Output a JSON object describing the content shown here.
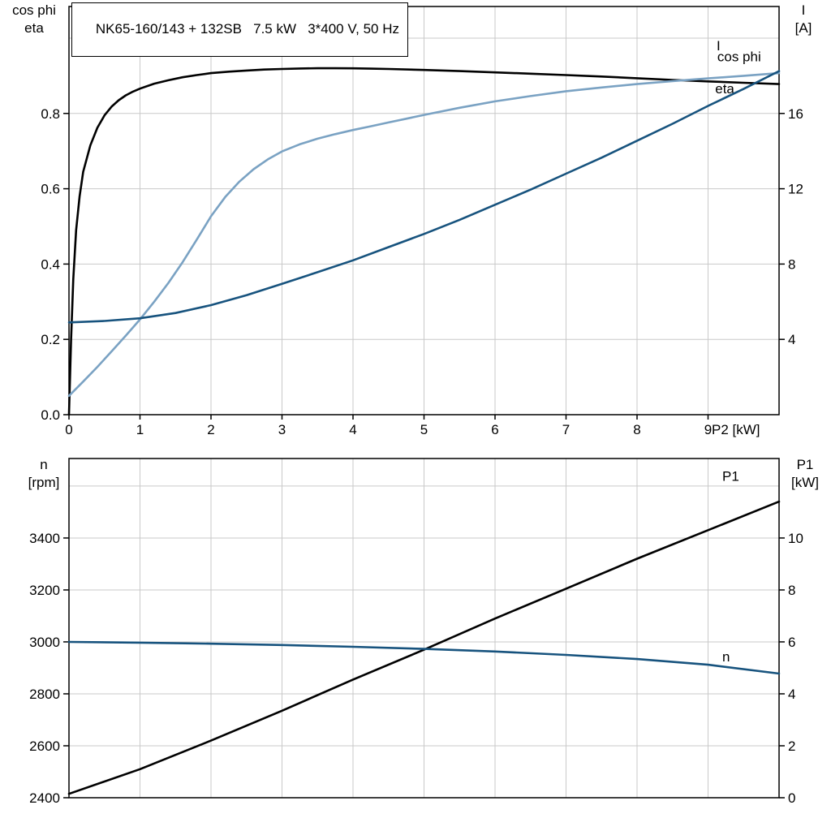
{
  "title_box": {
    "text": "NK65-160/143 + 132SB   7.5 kW   3*400 V, 50 Hz"
  },
  "colors": {
    "black": "#000000",
    "dark_blue": "#17537e",
    "light_blue": "#7aa2c3",
    "grid": "#c9c9c9"
  },
  "chart_data": [
    {
      "type": "line",
      "title": "NK65-160/143 + 132SB   7.5 kW   3*400 V, 50 Hz",
      "x_label": "P2 [kW]",
      "x_range": [
        0,
        10
      ],
      "x_ticks": {
        "values": [
          0,
          1,
          2,
          3,
          4,
          5,
          6,
          7,
          8,
          9
        ],
        "labels": [
          "0",
          "1",
          "2",
          "3",
          "4",
          "5",
          "6",
          "7",
          "8",
          "9"
        ]
      },
      "grid_x": [
        1,
        2,
        3,
        4,
        5,
        6,
        7,
        8,
        9
      ],
      "grid_on": true,
      "legend_position": "on-curve-right",
      "left_axis": {
        "label_lines": [
          "cos phi",
          "eta"
        ],
        "range": [
          0,
          1.084
        ],
        "ticks": {
          "values": [
            0,
            0.2,
            0.4,
            0.6,
            0.8
          ],
          "labels": [
            "0.0",
            "0.2",
            "0.4",
            "0.6",
            "0.8"
          ]
        },
        "grid_values": [
          0.2,
          0.4,
          0.6,
          0.8,
          1.0
        ]
      },
      "right_axis": {
        "label_lines": [
          "I",
          "[A]"
        ],
        "range": [
          0,
          21.68
        ],
        "ticks": {
          "values": [
            4,
            8,
            12,
            16
          ],
          "labels": [
            "4",
            "8",
            "12",
            "16"
          ]
        }
      },
      "series": [
        {
          "name": "eta",
          "axis": "left",
          "color": "#000000",
          "label_at": [
            9.1,
            0.853
          ],
          "points": [
            [
              0,
              0
            ],
            [
              0.03,
              0.2
            ],
            [
              0.06,
              0.36
            ],
            [
              0.1,
              0.49
            ],
            [
              0.15,
              0.58
            ],
            [
              0.2,
              0.645
            ],
            [
              0.3,
              0.715
            ],
            [
              0.4,
              0.762
            ],
            [
              0.5,
              0.795
            ],
            [
              0.6,
              0.818
            ],
            [
              0.7,
              0.835
            ],
            [
              0.8,
              0.848
            ],
            [
              0.9,
              0.858
            ],
            [
              1,
              0.866
            ],
            [
              1.2,
              0.879
            ],
            [
              1.4,
              0.888
            ],
            [
              1.6,
              0.896
            ],
            [
              1.8,
              0.902
            ],
            [
              2,
              0.907
            ],
            [
              2.25,
              0.911
            ],
            [
              2.5,
              0.914
            ],
            [
              2.75,
              0.9165
            ],
            [
              3,
              0.918
            ],
            [
              3.25,
              0.9193
            ],
            [
              3.5,
              0.92
            ],
            [
              3.75,
              0.92
            ],
            [
              4,
              0.9197
            ],
            [
              4.25,
              0.919
            ],
            [
              4.5,
              0.918
            ],
            [
              5,
              0.9155
            ],
            [
              5.5,
              0.9125
            ],
            [
              6,
              0.909
            ],
            [
              6.5,
              0.9055
            ],
            [
              7,
              0.902
            ],
            [
              7.5,
              0.898
            ],
            [
              8,
              0.8935
            ],
            [
              8.5,
              0.889
            ],
            [
              9,
              0.885
            ],
            [
              9.5,
              0.8815
            ],
            [
              10,
              0.878
            ]
          ]
        },
        {
          "name": "cos phi",
          "axis": "left",
          "color": "#7aa2c3",
          "label_at": [
            9.13,
            0.938
          ],
          "points": [
            [
              0,
              0.05
            ],
            [
              0.2,
              0.088
            ],
            [
              0.4,
              0.127
            ],
            [
              0.6,
              0.168
            ],
            [
              0.8,
              0.21
            ],
            [
              1,
              0.253
            ],
            [
              1.2,
              0.3
            ],
            [
              1.4,
              0.35
            ],
            [
              1.6,
              0.405
            ],
            [
              1.8,
              0.465
            ],
            [
              2,
              0.527
            ],
            [
              2.2,
              0.578
            ],
            [
              2.4,
              0.619
            ],
            [
              2.6,
              0.652
            ],
            [
              2.8,
              0.678
            ],
            [
              3,
              0.699
            ],
            [
              3.25,
              0.718
            ],
            [
              3.5,
              0.733
            ],
            [
              3.75,
              0.745
            ],
            [
              4,
              0.756
            ],
            [
              4.25,
              0.766
            ],
            [
              4.5,
              0.776
            ],
            [
              4.75,
              0.786
            ],
            [
              5,
              0.796
            ],
            [
              5.5,
              0.815
            ],
            [
              6,
              0.832
            ],
            [
              6.5,
              0.846
            ],
            [
              7,
              0.859
            ],
            [
              7.5,
              0.869
            ],
            [
              8,
              0.878
            ],
            [
              8.5,
              0.886
            ],
            [
              9,
              0.893
            ],
            [
              9.5,
              0.9
            ],
            [
              10,
              0.907
            ]
          ]
        },
        {
          "name": "I",
          "axis": "right",
          "color": "#17537e",
          "label_at": [
            9.12,
            19.35
          ],
          "points": [
            [
              0,
              4.9
            ],
            [
              0.5,
              4.98
            ],
            [
              1,
              5.12
            ],
            [
              1.5,
              5.4
            ],
            [
              2,
              5.82
            ],
            [
              2.5,
              6.35
            ],
            [
              3,
              6.95
            ],
            [
              3.5,
              7.57
            ],
            [
              4,
              8.2
            ],
            [
              4.5,
              8.9
            ],
            [
              5,
              9.6
            ],
            [
              5.5,
              10.35
            ],
            [
              6,
              11.15
            ],
            [
              6.5,
              11.95
            ],
            [
              7,
              12.8
            ],
            [
              7.5,
              13.65
            ],
            [
              8,
              14.55
            ],
            [
              8.5,
              15.45
            ],
            [
              9,
              16.4
            ],
            [
              9.5,
              17.3
            ],
            [
              10,
              18.25
            ]
          ]
        }
      ]
    },
    {
      "type": "line",
      "title": "",
      "x_label": "",
      "x_range": [
        0,
        10
      ],
      "x_ticks": {
        "values": [],
        "labels": []
      },
      "grid_x": [
        1,
        2,
        3,
        4,
        5,
        6,
        7,
        8,
        9
      ],
      "grid_on": true,
      "legend_position": "on-curve-right",
      "left_axis": {
        "label_lines": [
          "n",
          "[rpm]"
        ],
        "range": [
          2400,
          3706
        ],
        "ticks": {
          "values": [
            2400,
            2600,
            2800,
            3000,
            3200,
            3400
          ],
          "labels": [
            "2400",
            "2600",
            "2800",
            "3000",
            "3200",
            "3400"
          ]
        },
        "grid_values": [
          2600,
          2800,
          3000,
          3200,
          3400,
          3600
        ]
      },
      "right_axis": {
        "label_lines": [
          "P1",
          "[kW]"
        ],
        "range": [
          0,
          13.06
        ],
        "ticks": {
          "values": [
            0,
            2,
            4,
            6,
            8,
            10
          ],
          "labels": [
            "0",
            "2",
            "4",
            "6",
            "8",
            "10"
          ]
        }
      },
      "series": [
        {
          "name": "P1",
          "axis": "right",
          "color": "#000000",
          "label_at": [
            9.2,
            12.2
          ],
          "points": [
            [
              0,
              0.15
            ],
            [
              1,
              1.1
            ],
            [
              2,
              2.2
            ],
            [
              3,
              3.35
            ],
            [
              4,
              4.55
            ],
            [
              5,
              5.7
            ],
            [
              6,
              6.9
            ],
            [
              7,
              8.05
            ],
            [
              8,
              9.2
            ],
            [
              9,
              10.3
            ],
            [
              10,
              11.4
            ]
          ]
        },
        {
          "name": "n",
          "axis": "left",
          "color": "#17537e",
          "label_at": [
            9.2,
            2925
          ],
          "points": [
            [
              0,
              3000
            ],
            [
              1,
              2997
            ],
            [
              2,
              2993
            ],
            [
              3,
              2988
            ],
            [
              4,
              2981
            ],
            [
              5,
              2973
            ],
            [
              6,
              2963
            ],
            [
              7,
              2950
            ],
            [
              8,
              2934
            ],
            [
              9,
              2912
            ],
            [
              10,
              2878
            ]
          ]
        }
      ]
    }
  ]
}
